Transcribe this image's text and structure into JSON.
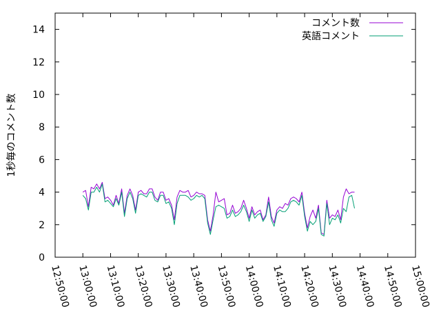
{
  "chart_data": {
    "type": "line",
    "ylabel": "1秒毎のコメント数",
    "ylim": [
      0,
      15
    ],
    "yticks": [
      "0",
      "2",
      "4",
      "6",
      "8",
      "10",
      "12",
      "14"
    ],
    "xlim_minutes": [
      -10,
      120
    ],
    "xticks": [
      "12:50:00",
      "13:00:00",
      "13:10:00",
      "13:20:00",
      "13:30:00",
      "13:40:00",
      "13:50:00",
      "14:00:00",
      "14:10:00",
      "14:20:00",
      "14:30:00",
      "14:40:00",
      "14:50:00",
      "15:00:00"
    ],
    "grid": false,
    "legend_position": "top-right",
    "series": [
      {
        "name": "コメント数",
        "color": "#9400d3",
        "values": [
          [
            0,
            4.0
          ],
          [
            1,
            4.1
          ],
          [
            2,
            3.1
          ],
          [
            3,
            4.3
          ],
          [
            4,
            4.2
          ],
          [
            5,
            4.5
          ],
          [
            6,
            4.2
          ],
          [
            7,
            4.6
          ],
          [
            8,
            3.6
          ],
          [
            9,
            3.7
          ],
          [
            10,
            3.5
          ],
          [
            11,
            3.2
          ],
          [
            12,
            3.8
          ],
          [
            13,
            3.3
          ],
          [
            14,
            4.2
          ],
          [
            15,
            2.7
          ],
          [
            16,
            3.8
          ],
          [
            17,
            4.2
          ],
          [
            18,
            3.8
          ],
          [
            19,
            2.9
          ],
          [
            20,
            4.0
          ],
          [
            21,
            4.1
          ],
          [
            22,
            3.9
          ],
          [
            23,
            3.9
          ],
          [
            24,
            4.2
          ],
          [
            25,
            4.2
          ],
          [
            26,
            3.7
          ],
          [
            27,
            3.5
          ],
          [
            28,
            4.0
          ],
          [
            29,
            4.0
          ],
          [
            30,
            3.5
          ],
          [
            31,
            3.6
          ],
          [
            32,
            3.2
          ],
          [
            33,
            2.3
          ],
          [
            34,
            3.7
          ],
          [
            35,
            4.1
          ],
          [
            36,
            4.0
          ],
          [
            37,
            4.0
          ],
          [
            38,
            4.1
          ],
          [
            39,
            3.7
          ],
          [
            40,
            3.8
          ],
          [
            41,
            4.0
          ],
          [
            42,
            3.9
          ],
          [
            43,
            3.9
          ],
          [
            44,
            3.8
          ],
          [
            45,
            2.3
          ],
          [
            46,
            1.6
          ],
          [
            47,
            2.6
          ],
          [
            48,
            4.0
          ],
          [
            49,
            3.4
          ],
          [
            50,
            3.5
          ],
          [
            51,
            3.6
          ],
          [
            52,
            2.6
          ],
          [
            53,
            2.7
          ],
          [
            54,
            3.2
          ],
          [
            55,
            2.7
          ],
          [
            56,
            2.8
          ],
          [
            57,
            3.0
          ],
          [
            58,
            3.5
          ],
          [
            59,
            3.0
          ],
          [
            60,
            2.4
          ],
          [
            61,
            3.1
          ],
          [
            62,
            2.6
          ],
          [
            63,
            2.8
          ],
          [
            64,
            2.9
          ],
          [
            65,
            2.3
          ],
          [
            66,
            2.6
          ],
          [
            67,
            3.7
          ],
          [
            68,
            2.5
          ],
          [
            69,
            2.1
          ],
          [
            70,
            2.9
          ],
          [
            71,
            3.1
          ],
          [
            72,
            3.0
          ],
          [
            73,
            3.3
          ],
          [
            74,
            3.2
          ],
          [
            75,
            3.6
          ],
          [
            76,
            3.7
          ],
          [
            77,
            3.6
          ],
          [
            78,
            3.4
          ],
          [
            79,
            4.0
          ],
          [
            80,
            2.7
          ],
          [
            81,
            1.8
          ],
          [
            82,
            2.5
          ],
          [
            83,
            2.9
          ],
          [
            84,
            2.4
          ],
          [
            85,
            3.2
          ],
          [
            86,
            1.5
          ],
          [
            87,
            1.4
          ],
          [
            88,
            3.5
          ],
          [
            89,
            2.4
          ],
          [
            90,
            2.6
          ],
          [
            91,
            2.5
          ],
          [
            92,
            2.9
          ],
          [
            93,
            2.3
          ],
          [
            94,
            3.7
          ],
          [
            95,
            4.2
          ],
          [
            96,
            3.9
          ],
          [
            97,
            4.0
          ],
          [
            98,
            4.0
          ]
        ]
      },
      {
        "name": "英語コメント",
        "color": "#009e73",
        "values": [
          [
            0,
            3.8
          ],
          [
            1,
            3.6
          ],
          [
            2,
            2.9
          ],
          [
            3,
            4.0
          ],
          [
            4,
            4.0
          ],
          [
            5,
            4.3
          ],
          [
            6,
            4.0
          ],
          [
            7,
            4.5
          ],
          [
            8,
            3.4
          ],
          [
            9,
            3.5
          ],
          [
            10,
            3.3
          ],
          [
            11,
            3.1
          ],
          [
            12,
            3.6
          ],
          [
            13,
            3.2
          ],
          [
            14,
            4.0
          ],
          [
            15,
            2.5
          ],
          [
            16,
            3.6
          ],
          [
            17,
            4.0
          ],
          [
            18,
            3.6
          ],
          [
            19,
            2.7
          ],
          [
            20,
            3.8
          ],
          [
            21,
            3.9
          ],
          [
            22,
            3.8
          ],
          [
            23,
            3.7
          ],
          [
            24,
            4.0
          ],
          [
            25,
            4.0
          ],
          [
            26,
            3.5
          ],
          [
            27,
            3.4
          ],
          [
            28,
            3.8
          ],
          [
            29,
            3.8
          ],
          [
            30,
            3.3
          ],
          [
            31,
            3.4
          ],
          [
            32,
            3.0
          ],
          [
            33,
            2.0
          ],
          [
            34,
            3.3
          ],
          [
            35,
            3.8
          ],
          [
            36,
            3.8
          ],
          [
            37,
            3.8
          ],
          [
            38,
            3.7
          ],
          [
            39,
            3.5
          ],
          [
            40,
            3.6
          ],
          [
            41,
            3.8
          ],
          [
            42,
            3.7
          ],
          [
            43,
            3.8
          ],
          [
            44,
            3.6
          ],
          [
            45,
            2.1
          ],
          [
            46,
            1.4
          ],
          [
            47,
            2.3
          ],
          [
            48,
            3.1
          ],
          [
            49,
            3.2
          ],
          [
            50,
            3.1
          ],
          [
            51,
            3.0
          ],
          [
            52,
            2.4
          ],
          [
            53,
            2.5
          ],
          [
            54,
            2.9
          ],
          [
            55,
            2.5
          ],
          [
            56,
            2.6
          ],
          [
            57,
            2.8
          ],
          [
            58,
            3.2
          ],
          [
            59,
            2.8
          ],
          [
            60,
            2.2
          ],
          [
            61,
            2.9
          ],
          [
            62,
            2.4
          ],
          [
            63,
            2.6
          ],
          [
            64,
            2.7
          ],
          [
            65,
            2.2
          ],
          [
            66,
            2.5
          ],
          [
            67,
            3.4
          ],
          [
            68,
            2.3
          ],
          [
            69,
            1.9
          ],
          [
            70,
            2.7
          ],
          [
            71,
            2.9
          ],
          [
            72,
            2.8
          ],
          [
            73,
            2.8
          ],
          [
            74,
            3.0
          ],
          [
            75,
            3.4
          ],
          [
            76,
            3.5
          ],
          [
            77,
            3.4
          ],
          [
            78,
            3.2
          ],
          [
            79,
            3.8
          ],
          [
            80,
            2.5
          ],
          [
            81,
            1.6
          ],
          [
            82,
            2.2
          ],
          [
            83,
            2.0
          ],
          [
            84,
            2.2
          ],
          [
            85,
            3.0
          ],
          [
            86,
            1.4
          ],
          [
            87,
            1.3
          ],
          [
            88,
            3.3
          ],
          [
            89,
            2.0
          ],
          [
            90,
            2.4
          ],
          [
            91,
            2.3
          ],
          [
            92,
            2.6
          ],
          [
            93,
            2.1
          ],
          [
            94,
            3.0
          ],
          [
            95,
            2.8
          ],
          [
            96,
            3.7
          ],
          [
            97,
            3.8
          ],
          [
            98,
            3.0
          ]
        ]
      }
    ]
  }
}
